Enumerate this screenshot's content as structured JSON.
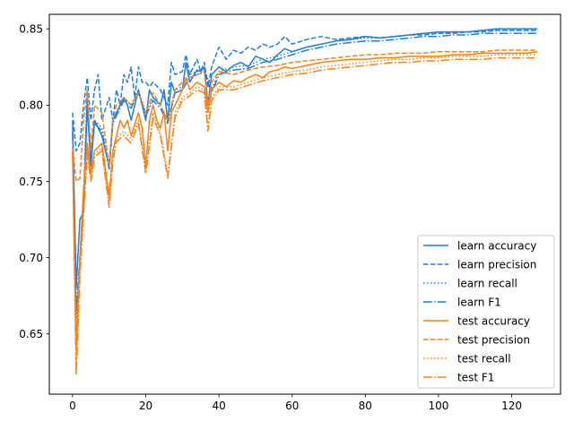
{
  "chart_data": {
    "type": "line",
    "title": "",
    "xlabel": "",
    "ylabel": "",
    "xlim": [
      -6.35,
      133.35
    ],
    "ylim": [
      0.6105,
      0.8595
    ],
    "xticks": [
      0,
      20,
      40,
      60,
      80,
      100,
      120
    ],
    "yticks": [
      0.65,
      0.7,
      0.75,
      0.8,
      0.85
    ],
    "ytick_labels": [
      "0.65",
      "0.70",
      "0.75",
      "0.80",
      "0.85"
    ],
    "grid": false,
    "legend_position": "lower right",
    "x_range": [
      0,
      127
    ],
    "colors": {
      "learn": "#1f7fe0",
      "test": "#ff8010"
    },
    "series": [
      {
        "name": "learn accuracy",
        "color": "#1f7fe0",
        "dash": "solid",
        "x": [
          0,
          1,
          2,
          3,
          4,
          5,
          6,
          8,
          10,
          11,
          12,
          13,
          14,
          15,
          16,
          18,
          20,
          21,
          22,
          24,
          25,
          26,
          27,
          28,
          30,
          31,
          32,
          34,
          35,
          36,
          37,
          38,
          40,
          42,
          44,
          46,
          48,
          50,
          52,
          54,
          56,
          58,
          60,
          64,
          68,
          72,
          76,
          80,
          84,
          88,
          92,
          96,
          100,
          104,
          108,
          112,
          116,
          120,
          124,
          127
        ],
        "values": [
          0.79,
          0.68,
          0.725,
          0.73,
          0.8,
          0.76,
          0.79,
          0.78,
          0.76,
          0.79,
          0.795,
          0.8,
          0.805,
          0.8,
          0.79,
          0.81,
          0.79,
          0.81,
          0.805,
          0.8,
          0.81,
          0.79,
          0.815,
          0.808,
          0.81,
          0.828,
          0.815,
          0.823,
          0.822,
          0.825,
          0.8,
          0.82,
          0.825,
          0.822,
          0.826,
          0.828,
          0.825,
          0.832,
          0.83,
          0.828,
          0.833,
          0.837,
          0.835,
          0.838,
          0.84,
          0.842,
          0.843,
          0.845,
          0.844,
          0.845,
          0.846,
          0.847,
          0.848,
          0.848,
          0.848,
          0.849,
          0.85,
          0.85,
          0.85,
          0.85
        ]
      },
      {
        "name": "learn precision",
        "color": "#1f7fe0",
        "dash": "dashed",
        "x": [
          0,
          1,
          2,
          3,
          4,
          5,
          6,
          7,
          8,
          10,
          11,
          12,
          13,
          14,
          15,
          16,
          17,
          18,
          19,
          20,
          21,
          22,
          24,
          25,
          26,
          27,
          28,
          30,
          31,
          32,
          34,
          35,
          36,
          37,
          38,
          40,
          42,
          44,
          46,
          48,
          50,
          52,
          54,
          56,
          58,
          60,
          64,
          68,
          72,
          76,
          80,
          84,
          88,
          92,
          96,
          100,
          104,
          108,
          112,
          116,
          120,
          124,
          127
        ],
        "values": [
          0.795,
          0.77,
          0.775,
          0.8,
          0.818,
          0.79,
          0.81,
          0.82,
          0.79,
          0.805,
          0.79,
          0.81,
          0.8,
          0.82,
          0.815,
          0.825,
          0.805,
          0.825,
          0.815,
          0.815,
          0.812,
          0.815,
          0.81,
          0.805,
          0.8,
          0.828,
          0.82,
          0.822,
          0.833,
          0.82,
          0.83,
          0.822,
          0.828,
          0.812,
          0.825,
          0.838,
          0.83,
          0.836,
          0.834,
          0.838,
          0.836,
          0.84,
          0.838,
          0.84,
          0.845,
          0.84,
          0.843,
          0.845,
          0.843,
          0.844,
          0.845,
          0.844,
          0.845,
          0.846,
          0.846,
          0.847,
          0.847,
          0.848,
          0.848,
          0.849,
          0.849,
          0.849,
          0.849
        ]
      },
      {
        "name": "learn recall",
        "color": "#1f7fe0",
        "dash": "dotted",
        "x": [
          0,
          1,
          2,
          3,
          4,
          5,
          6,
          8,
          10,
          11,
          12,
          14,
          16,
          18,
          20,
          22,
          24,
          26,
          28,
          30,
          32,
          34,
          36,
          38,
          40,
          44,
          48,
          52,
          56,
          60,
          64,
          68,
          72,
          76,
          80,
          84,
          88,
          92,
          96,
          100,
          104,
          108,
          112,
          116,
          120,
          124,
          127
        ],
        "values": [
          0.785,
          0.66,
          0.695,
          0.74,
          0.81,
          0.765,
          0.79,
          0.785,
          0.76,
          0.79,
          0.795,
          0.805,
          0.8,
          0.81,
          0.795,
          0.805,
          0.8,
          0.79,
          0.81,
          0.812,
          0.82,
          0.822,
          0.824,
          0.81,
          0.822,
          0.825,
          0.826,
          0.83,
          0.832,
          0.835,
          0.838,
          0.84,
          0.842,
          0.843,
          0.844,
          0.844,
          0.845,
          0.846,
          0.847,
          0.847,
          0.848,
          0.848,
          0.849,
          0.849,
          0.849,
          0.849,
          0.849
        ]
      },
      {
        "name": "learn F1",
        "color": "#1f7fe0",
        "dash": "dashdot",
        "x": [
          0,
          1,
          2,
          3,
          4,
          5,
          6,
          8,
          10,
          11,
          12,
          14,
          16,
          18,
          20,
          22,
          24,
          26,
          28,
          30,
          32,
          34,
          36,
          38,
          40,
          44,
          48,
          52,
          56,
          60,
          64,
          68,
          72,
          76,
          80,
          84,
          88,
          92,
          96,
          100,
          104,
          108,
          112,
          116,
          120,
          124,
          127
        ],
        "values": [
          0.782,
          0.665,
          0.7,
          0.735,
          0.805,
          0.762,
          0.788,
          0.783,
          0.758,
          0.788,
          0.793,
          0.803,
          0.798,
          0.808,
          0.793,
          0.803,
          0.798,
          0.788,
          0.808,
          0.81,
          0.818,
          0.82,
          0.822,
          0.808,
          0.82,
          0.823,
          0.824,
          0.828,
          0.83,
          0.833,
          0.836,
          0.838,
          0.84,
          0.841,
          0.842,
          0.842,
          0.843,
          0.844,
          0.845,
          0.845,
          0.846,
          0.846,
          0.847,
          0.847,
          0.847,
          0.847,
          0.847
        ]
      },
      {
        "name": "test accuracy",
        "color": "#ff8010",
        "dash": "solid",
        "x": [
          0,
          1,
          2,
          3,
          4,
          5,
          6,
          8,
          10,
          11,
          12,
          13,
          14,
          15,
          16,
          18,
          19,
          20,
          21,
          22,
          23,
          24,
          25,
          26,
          27,
          28,
          30,
          31,
          32,
          34,
          36,
          37,
          38,
          40,
          42,
          44,
          46,
          48,
          50,
          52,
          54,
          56,
          58,
          60,
          64,
          68,
          72,
          76,
          80,
          84,
          88,
          92,
          96,
          100,
          104,
          108,
          112,
          116,
          120,
          124,
          127
        ],
        "values": [
          0.77,
          0.64,
          0.7,
          0.745,
          0.775,
          0.755,
          0.77,
          0.775,
          0.74,
          0.77,
          0.78,
          0.79,
          0.785,
          0.79,
          0.78,
          0.795,
          0.785,
          0.76,
          0.79,
          0.8,
          0.79,
          0.785,
          0.795,
          0.77,
          0.795,
          0.8,
          0.81,
          0.818,
          0.81,
          0.815,
          0.812,
          0.795,
          0.81,
          0.815,
          0.812,
          0.816,
          0.815,
          0.818,
          0.82,
          0.818,
          0.822,
          0.823,
          0.825,
          0.824,
          0.826,
          0.828,
          0.829,
          0.83,
          0.83,
          0.831,
          0.831,
          0.832,
          0.832,
          0.832,
          0.833,
          0.833,
          0.834,
          0.834,
          0.834,
          0.834,
          0.835
        ]
      },
      {
        "name": "test precision",
        "color": "#ff8010",
        "dash": "dashed",
        "x": [
          0,
          1,
          2,
          3,
          4,
          5,
          6,
          8,
          10,
          11,
          12,
          14,
          16,
          18,
          20,
          22,
          24,
          26,
          28,
          30,
          32,
          34,
          36,
          37,
          38,
          40,
          44,
          48,
          52,
          56,
          60,
          64,
          68,
          72,
          76,
          80,
          84,
          88,
          92,
          96,
          100,
          104,
          108,
          112,
          116,
          120,
          124,
          127
        ],
        "values": [
          0.772,
          0.75,
          0.752,
          0.79,
          0.81,
          0.77,
          0.8,
          0.795,
          0.76,
          0.79,
          0.8,
          0.805,
          0.8,
          0.808,
          0.795,
          0.808,
          0.8,
          0.79,
          0.81,
          0.815,
          0.818,
          0.82,
          0.822,
          0.8,
          0.815,
          0.822,
          0.82,
          0.823,
          0.825,
          0.826,
          0.828,
          0.829,
          0.83,
          0.831,
          0.832,
          0.833,
          0.833,
          0.834,
          0.834,
          0.834,
          0.835,
          0.835,
          0.835,
          0.835,
          0.836,
          0.836,
          0.836,
          0.836
        ]
      },
      {
        "name": "test recall",
        "color": "#ff8010",
        "dash": "dotted",
        "x": [
          0,
          1,
          2,
          3,
          4,
          5,
          6,
          8,
          10,
          11,
          12,
          14,
          16,
          18,
          20,
          22,
          24,
          26,
          28,
          30,
          32,
          34,
          36,
          37,
          38,
          40,
          44,
          48,
          52,
          56,
          60,
          64,
          68,
          72,
          76,
          80,
          84,
          88,
          92,
          96,
          100,
          104,
          108,
          112,
          116,
          120,
          124,
          127
        ],
        "values": [
          0.768,
          0.625,
          0.69,
          0.73,
          0.77,
          0.752,
          0.768,
          0.772,
          0.736,
          0.766,
          0.778,
          0.783,
          0.778,
          0.79,
          0.758,
          0.795,
          0.782,
          0.755,
          0.795,
          0.805,
          0.808,
          0.812,
          0.81,
          0.785,
          0.805,
          0.812,
          0.812,
          0.815,
          0.818,
          0.82,
          0.822,
          0.823,
          0.825,
          0.826,
          0.827,
          0.828,
          0.829,
          0.83,
          0.83,
          0.831,
          0.831,
          0.832,
          0.832,
          0.832,
          0.833,
          0.833,
          0.833,
          0.833
        ]
      },
      {
        "name": "test F1",
        "color": "#ff8010",
        "dash": "dashdot",
        "x": [
          0,
          1,
          2,
          3,
          4,
          5,
          6,
          8,
          10,
          11,
          12,
          14,
          16,
          18,
          20,
          22,
          24,
          26,
          28,
          30,
          32,
          34,
          36,
          37,
          38,
          40,
          44,
          48,
          52,
          56,
          60,
          64,
          68,
          72,
          76,
          80,
          84,
          88,
          92,
          96,
          100,
          104,
          108,
          112,
          116,
          120,
          124,
          127
        ],
        "values": [
          0.769,
          0.623,
          0.688,
          0.728,
          0.768,
          0.75,
          0.766,
          0.77,
          0.733,
          0.763,
          0.776,
          0.78,
          0.775,
          0.788,
          0.755,
          0.792,
          0.78,
          0.752,
          0.792,
          0.803,
          0.806,
          0.81,
          0.808,
          0.783,
          0.803,
          0.81,
          0.81,
          0.813,
          0.816,
          0.818,
          0.82,
          0.821,
          0.823,
          0.824,
          0.825,
          0.826,
          0.827,
          0.828,
          0.828,
          0.829,
          0.829,
          0.83,
          0.83,
          0.83,
          0.831,
          0.831,
          0.831,
          0.831
        ]
      }
    ]
  }
}
